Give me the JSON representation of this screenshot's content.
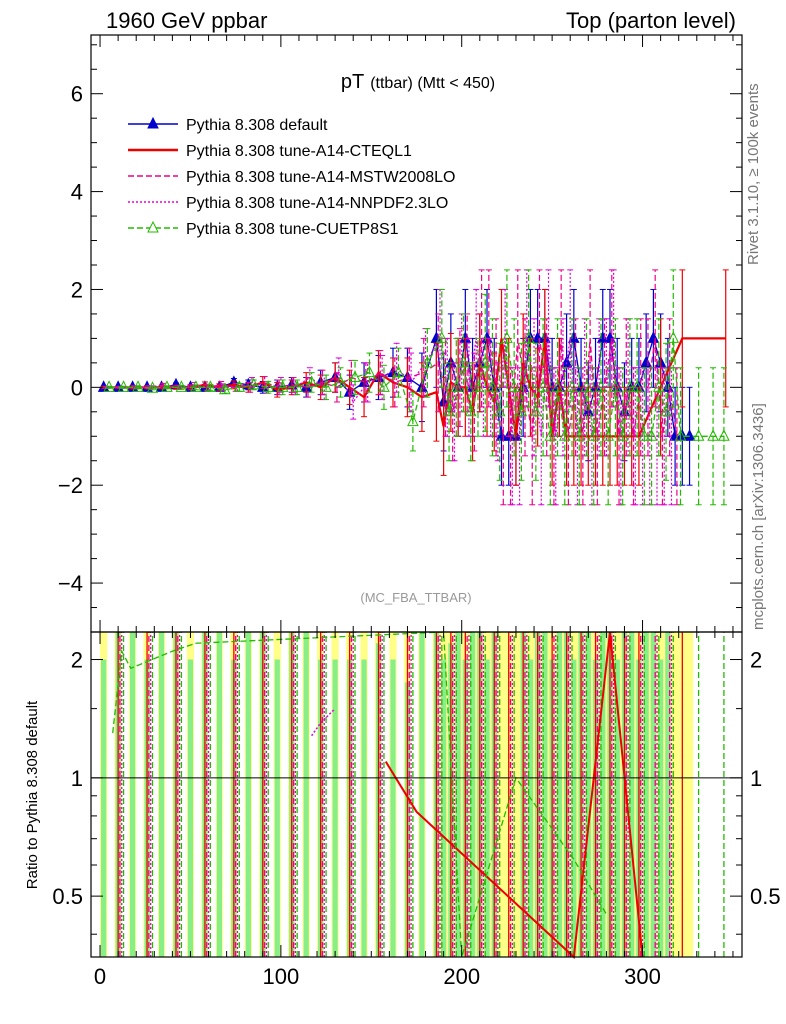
{
  "header": {
    "left": "1960 GeV ppbar",
    "right": "Top (parton level)"
  },
  "side_labels": {
    "rivet": "Rivet 3.1.10, ≥ 100k events",
    "mcplots": "mcplots.cern.ch [arXiv:1306.3436]"
  },
  "chart_data": {
    "type": "line",
    "title": "pT (ttbar) (Mtt < 450)",
    "title_main": "pT",
    "title_sub": "(ttbar) (Mtt < 450)",
    "watermark": "(MC_FBA_TTBAR)",
    "xlim": [
      -5,
      355
    ],
    "ylim": [
      -5,
      7.2
    ],
    "y_ticks": [
      -4,
      -2,
      0,
      2,
      4,
      6
    ],
    "y_tick_labels": [
      "−4",
      "−2",
      "0",
      "2",
      "4",
      "6"
    ],
    "x_ticks": [
      0,
      100,
      200,
      300
    ],
    "x_tick_labels": [
      "0",
      "100",
      "200",
      "300"
    ],
    "legend_position": "top-left",
    "series": [
      {
        "name": "Pythia 8.308 default",
        "color": "#0000cc",
        "style": "solid-triangle",
        "x": [
          2,
          10,
          18,
          26,
          34,
          42,
          50,
          58,
          66,
          74,
          82,
          90,
          98,
          106,
          114,
          122,
          130,
          138,
          146,
          154,
          162,
          170,
          178,
          186,
          190,
          194,
          198,
          202,
          206,
          210,
          214,
          218,
          222,
          226,
          230,
          234,
          238,
          242,
          246,
          250,
          254,
          258,
          262,
          266,
          270,
          274,
          278,
          282,
          286,
          290,
          294,
          298,
          302,
          306,
          310,
          314,
          318,
          322,
          326
        ],
        "y": [
          0,
          0,
          0,
          0,
          0,
          0.05,
          0,
          0,
          0,
          0.1,
          0.05,
          0,
          0,
          0.05,
          0,
          0.1,
          0.2,
          -0.1,
          0.1,
          0.2,
          0.3,
          0.2,
          0,
          1,
          -0.3,
          0.5,
          0,
          1,
          0,
          0.5,
          1,
          0,
          -1,
          -1,
          -1,
          0,
          1,
          1,
          1,
          0,
          0,
          0.5,
          1,
          0,
          -0.5,
          0,
          1,
          1,
          0,
          -0.5,
          0,
          0,
          0.5,
          1,
          0.5,
          0,
          -1,
          -1,
          -1
        ],
        "err": [
          0.02,
          0.02,
          0.03,
          0.03,
          0.03,
          0.04,
          0.05,
          0.06,
          0.07,
          0.08,
          0.1,
          0.12,
          0.15,
          0.15,
          0.2,
          0.25,
          0.3,
          0.35,
          0.4,
          0.45,
          0.5,
          0.6,
          0.7,
          1,
          1,
          1,
          1,
          1,
          1,
          1,
          1,
          1,
          1,
          1,
          1,
          1,
          1,
          1,
          1,
          1,
          1,
          1,
          1,
          1,
          1,
          1,
          1,
          1,
          1,
          1,
          1,
          1,
          1,
          1,
          1,
          1,
          1,
          1,
          1
        ]
      },
      {
        "name": "Pythia 8.308 tune-A14-CTEQL1",
        "color": "#ee0000",
        "style": "solid",
        "x": [
          2,
          10,
          18,
          26,
          34,
          42,
          50,
          58,
          66,
          74,
          82,
          90,
          98,
          106,
          114,
          122,
          130,
          138,
          146,
          154,
          162,
          170,
          178,
          186,
          190,
          194,
          198,
          202,
          206,
          210,
          214,
          218,
          222,
          226,
          230,
          234,
          238,
          242,
          246,
          250,
          254,
          258,
          262,
          266,
          270,
          274,
          278,
          282,
          286,
          290,
          294,
          298,
          310,
          322,
          346
        ],
        "y": [
          0,
          0,
          0,
          0,
          0,
          0,
          0,
          0.05,
          0,
          0.05,
          0,
          0.1,
          -0.05,
          0,
          0.1,
          0,
          0.2,
          0,
          -0.2,
          0.3,
          0.1,
          0,
          -0.2,
          -0.1,
          -0.8,
          0.1,
          0,
          0,
          -0.5,
          0.5,
          0,
          -0.3,
          1,
          0,
          -1,
          0.5,
          0,
          -0.2,
          1,
          -1,
          0,
          -1,
          -1,
          -1,
          -1,
          -1,
          -1,
          -1,
          -1,
          -1,
          -1,
          -1,
          0,
          1,
          1
        ],
        "err": [
          0.02,
          0.02,
          0.03,
          0.03,
          0.03,
          0.04,
          0.05,
          0.06,
          0.07,
          0.08,
          0.1,
          0.12,
          0.15,
          0.15,
          0.2,
          0.25,
          0.3,
          0.35,
          0.4,
          0.45,
          0.5,
          0.6,
          0.7,
          1,
          1,
          1,
          1,
          1,
          1,
          1,
          1,
          1,
          1,
          1,
          1,
          1,
          1,
          1,
          1,
          1,
          1,
          1,
          1,
          1,
          1,
          1,
          1,
          1,
          1,
          1,
          1,
          1,
          1.4,
          1.4,
          1.4
        ]
      },
      {
        "name": "Pythia 8.308 tune-A14-MSTW2008LO",
        "color": "#ee0088",
        "style": "dashed",
        "x": [
          3,
          11,
          19,
          27,
          35,
          43,
          51,
          59,
          67,
          75,
          83,
          91,
          99,
          107,
          115,
          123,
          131,
          139,
          147,
          155,
          163,
          171,
          179,
          187,
          191,
          195,
          199,
          203,
          207,
          211,
          215,
          219,
          223,
          227,
          231,
          235,
          239,
          243,
          247,
          251,
          255,
          259,
          263,
          267,
          271,
          275,
          279,
          283,
          287,
          291,
          295,
          299,
          303,
          307,
          311,
          315,
          319
        ],
        "y": [
          0,
          0,
          0,
          0,
          0.05,
          0,
          0,
          0,
          0.05,
          0,
          0,
          0.1,
          0,
          0.05,
          0,
          0.1,
          0,
          0.2,
          0.1,
          0.3,
          0.1,
          0.2,
          0.3,
          0.5,
          0,
          -0.5,
          0.2,
          0.5,
          -0.3,
          1,
          1,
          0,
          -1,
          -1,
          1,
          0,
          -1,
          1,
          0,
          -1,
          1,
          -1,
          0,
          -1,
          1,
          -1,
          0,
          1,
          -1,
          0,
          -1,
          0,
          0,
          1,
          -1,
          0,
          -1
        ],
        "err": [
          0.02,
          0.02,
          0.03,
          0.03,
          0.03,
          0.04,
          0.05,
          0.06,
          0.07,
          0.08,
          0.1,
          0.12,
          0.15,
          0.15,
          0.2,
          0.25,
          0.3,
          0.35,
          0.4,
          0.45,
          0.5,
          0.6,
          0.7,
          1,
          1,
          1,
          1,
          1,
          1,
          1.4,
          1.4,
          1.4,
          1.4,
          1.4,
          1.4,
          1.4,
          1.4,
          1.4,
          1.4,
          1.4,
          1.4,
          1.4,
          1.4,
          1.4,
          1.4,
          1.4,
          1.4,
          1.4,
          1.4,
          1.4,
          1.4,
          1.4,
          1.4,
          1.4,
          1.4,
          1.4,
          1.4
        ]
      },
      {
        "name": "Pythia 8.308 tune-A14-NNPDF2.3LO",
        "color": "#dd00dd",
        "style": "dotted",
        "x": [
          4,
          12,
          20,
          28,
          36,
          44,
          52,
          60,
          68,
          76,
          84,
          92,
          100,
          108,
          116,
          124,
          132,
          140,
          148,
          156,
          164,
          172,
          180,
          188,
          192,
          196,
          200,
          204,
          208,
          212,
          216,
          220,
          224,
          228,
          232,
          236,
          240,
          244,
          248,
          252,
          256,
          260,
          264,
          268,
          272,
          276,
          280,
          284,
          288,
          292,
          296,
          300,
          304,
          308,
          312,
          316
        ],
        "y": [
          0,
          0,
          0,
          0,
          0,
          0,
          0.05,
          0,
          0,
          0,
          0.1,
          0,
          0.05,
          0,
          0.2,
          0,
          0.3,
          -0.3,
          0.1,
          0.2,
          0.4,
          0.1,
          0.5,
          1,
          0,
          -0.5,
          0.5,
          0,
          1,
          0,
          0,
          -0.5,
          1,
          -1,
          -1,
          1,
          0,
          -1,
          1,
          -1,
          0,
          1,
          -1,
          0,
          -1,
          0,
          0,
          1,
          -1,
          0,
          -1,
          -1,
          -1,
          -1,
          -1,
          -1
        ],
        "err": [
          0.02,
          0.02,
          0.03,
          0.03,
          0.03,
          0.04,
          0.05,
          0.06,
          0.07,
          0.08,
          0.1,
          0.12,
          0.15,
          0.15,
          0.2,
          0.25,
          0.3,
          0.35,
          0.4,
          0.45,
          0.5,
          0.6,
          0.7,
          1,
          1,
          1,
          1,
          1,
          1,
          1,
          1,
          1,
          1,
          1.4,
          1.4,
          1.4,
          1.4,
          1.4,
          1.4,
          1.4,
          1.4,
          1.4,
          1.4,
          1.4,
          1.4,
          1.4,
          1.4,
          1.4,
          1.4,
          1.4,
          1.4,
          1.4,
          1.4,
          1.4,
          1.4,
          1.4
        ]
      },
      {
        "name": "Pythia 8.308 tune-CUETP8S1",
        "color": "#22bb00",
        "style": "dashed-open-triangle",
        "x": [
          5,
          13,
          21,
          29,
          37,
          45,
          53,
          61,
          69,
          77,
          85,
          93,
          101,
          109,
          117,
          125,
          133,
          141,
          149,
          157,
          165,
          173,
          181,
          189,
          193,
          197,
          201,
          205,
          209,
          213,
          217,
          221,
          225,
          229,
          233,
          237,
          241,
          245,
          249,
          253,
          257,
          261,
          265,
          269,
          273,
          277,
          281,
          285,
          289,
          293,
          297,
          301,
          305,
          309,
          313,
          317,
          321,
          331,
          339,
          345
        ],
        "y": [
          0,
          0,
          0,
          -0.02,
          0,
          0,
          0,
          0,
          -0.05,
          0,
          0.05,
          0,
          0,
          0,
          0.1,
          0,
          0.1,
          0.2,
          0.3,
          0,
          0.3,
          -0.7,
          0.5,
          1,
          -0.5,
          0,
          0.5,
          -0.5,
          0,
          0.5,
          0,
          -0.5,
          1,
          0,
          -0.5,
          1,
          -0.5,
          0,
          -1,
          0,
          -1,
          0,
          -1,
          0,
          -1,
          0,
          -1,
          0,
          -1,
          0,
          0,
          -1,
          -1,
          0,
          -0.5,
          1,
          -1,
          -1,
          -1,
          -1
        ],
        "err": [
          0.02,
          0.02,
          0.03,
          0.03,
          0.03,
          0.04,
          0.05,
          0.06,
          0.07,
          0.08,
          0.1,
          0.12,
          0.15,
          0.15,
          0.2,
          0.25,
          0.3,
          0.35,
          0.4,
          0.45,
          0.5,
          0.6,
          0.7,
          1,
          1,
          1,
          1,
          1,
          1,
          1.4,
          1.4,
          1.4,
          1.4,
          1.4,
          1.4,
          1.4,
          1.4,
          1.4,
          1.4,
          1.4,
          1.4,
          1.4,
          1.4,
          1.4,
          1.4,
          1.4,
          1.4,
          1.4,
          1.4,
          1.4,
          1.4,
          1.4,
          1.4,
          1.4,
          1.4,
          1.4,
          1.4,
          1.4,
          1.4,
          1.4
        ]
      }
    ],
    "ratio_panel": {
      "ylabel": "Ratio to Pythia 8.308 default",
      "ylim": [
        0.35,
        2.35
      ],
      "y_ticks": [
        0.5,
        1,
        2
      ],
      "y_tick_labels": [
        "0.5",
        "1",
        "2"
      ],
      "bands": [
        {
          "x": [
            -5,
            355
          ],
          "green_lo": 0.35,
          "green_hi": 2.35,
          "yellow_lo": 0.35,
          "yellow_hi": 2.35
        }
      ],
      "green_band_x": [
        2,
        10,
        18,
        26,
        34,
        42,
        50,
        58,
        66,
        74,
        82,
        90,
        98,
        106,
        114,
        122,
        130,
        138,
        146,
        154,
        162,
        170,
        178,
        186,
        190,
        194,
        198,
        202,
        206,
        210,
        214,
        218,
        222,
        226,
        230,
        234,
        238,
        242,
        246,
        250,
        254,
        258,
        262,
        266,
        270,
        274,
        278,
        282,
        286,
        290,
        294,
        298,
        302,
        306,
        310,
        314,
        318,
        322,
        326
      ],
      "green_band_hi": [
        2.35,
        2.35,
        2.35,
        2.35,
        2.35,
        2.35,
        2.35,
        2.35,
        2.35,
        2.35,
        2.35,
        2.35,
        2.35,
        2.35,
        2.35,
        2.35,
        2.0,
        2.0,
        2.35,
        2.2,
        2.0,
        2.1,
        2.35,
        2.35,
        2.35,
        2.2,
        2.35,
        2.35,
        2.35,
        2.35,
        2.35,
        2.35,
        2.35,
        2.35,
        2.35,
        2.35,
        2.35,
        2.35,
        2.35,
        2.35,
        2.35,
        2.35,
        2.35,
        2.35,
        2.35,
        2.35,
        2.35,
        2.35,
        2.35,
        2.35,
        2.35,
        2.35,
        2.35,
        2.35,
        2.35,
        2.35,
        2.35,
        2.35,
        2.35
      ],
      "yellow_band_hi": [
        2.35,
        2.35,
        2.35,
        2.35,
        2.35,
        2.35,
        2.35,
        2.35,
        2.35,
        2.35,
        2.35,
        2.35,
        2.35,
        2.35,
        2.35,
        2.35,
        2.35,
        2.35,
        2.35,
        2.35,
        2.35,
        2.35,
        2.35,
        2.35,
        2.35,
        2.35,
        2.35,
        2.35,
        2.35,
        2.35,
        2.35,
        2.35,
        2.35,
        2.35,
        2.35,
        2.35,
        2.35,
        2.35,
        2.35,
        2.35,
        2.35,
        2.35,
        2.35,
        2.35,
        2.35,
        2.35,
        2.35,
        2.35,
        2.35,
        2.35,
        2.35,
        2.35,
        2.35,
        2.35,
        2.35,
        2.35,
        2.35,
        2.35,
        2.35
      ],
      "green_band_present": [
        1,
        1,
        1,
        1,
        1,
        1,
        1,
        1,
        1,
        1,
        1,
        1,
        1,
        1,
        1,
        1,
        1,
        1,
        1,
        1,
        1,
        1,
        1,
        1,
        1,
        1,
        1,
        1,
        1,
        1,
        1,
        1,
        0,
        0,
        0,
        1,
        1,
        1,
        1,
        1,
        1,
        1,
        1,
        1,
        1,
        1,
        1,
        1,
        1,
        1,
        1,
        1,
        1,
        1,
        1,
        1,
        0,
        0,
        0
      ],
      "red_ratio": {
        "x": [
          158,
          175,
          262,
          282,
          300
        ],
        "y": [
          1.1,
          0.82,
          0.32,
          2.4,
          0.35
        ]
      },
      "green_ratio": {
        "x": [
          7,
          12,
          17,
          40,
          53,
          190,
          200,
          230,
          262,
          280
        ],
        "y": [
          1.3,
          2.1,
          1.9,
          2.1,
          2.2,
          2.35,
          0.35,
          1.0,
          0.62,
          0.45
        ]
      },
      "magenta_ratio": {
        "x": [
          117,
          122,
          130
        ],
        "y": [
          1.28,
          1.38,
          1.5
        ]
      }
    }
  }
}
